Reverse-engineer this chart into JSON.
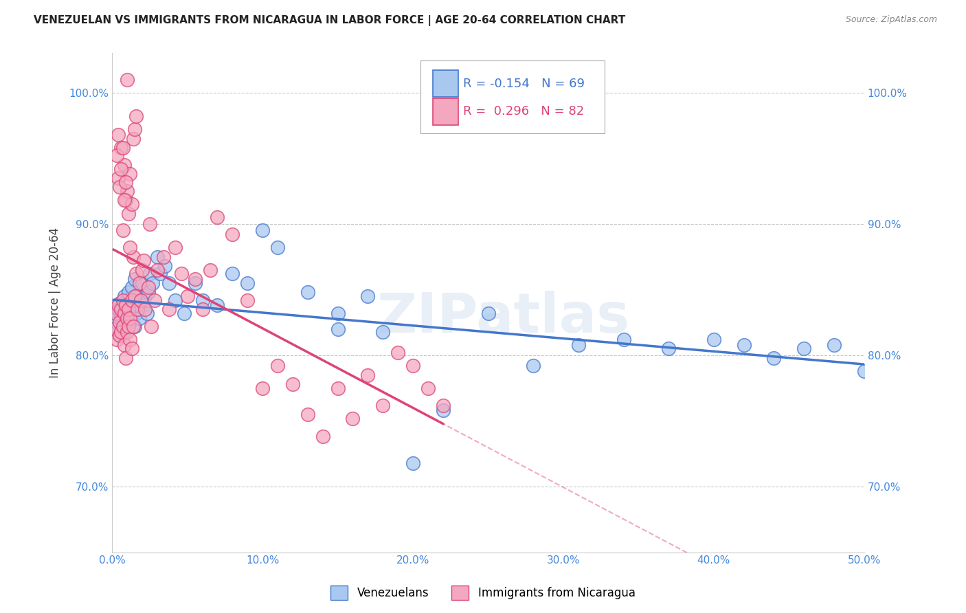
{
  "title": "VENEZUELAN VS IMMIGRANTS FROM NICARAGUA IN LABOR FORCE | AGE 20-64 CORRELATION CHART",
  "source": "Source: ZipAtlas.com",
  "ylabel": "In Labor Force | Age 20-64",
  "xmin": 0.0,
  "xmax": 0.5,
  "ymin": 0.65,
  "ymax": 1.03,
  "yticks": [
    0.7,
    0.8,
    0.9,
    1.0
  ],
  "ytick_labels": [
    "70.0%",
    "80.0%",
    "90.0%",
    "100.0%"
  ],
  "xticks": [
    0.0,
    0.1,
    0.2,
    0.3,
    0.4,
    0.5
  ],
  "xtick_labels": [
    "0.0%",
    "10.0%",
    "20.0%",
    "30.0%",
    "40.0%",
    "50.0%"
  ],
  "legend_label1": "Venezuelans",
  "legend_label2": "Immigrants from Nicaragua",
  "R1": "-0.154",
  "N1": "69",
  "R2": "0.296",
  "N2": "82",
  "color1": "#A8C8F0",
  "color2": "#F4A8C0",
  "line_color1": "#4477CC",
  "line_color2": "#DD4477",
  "watermark": "ZIPatlas",
  "background_color": "#FFFFFF",
  "title_color": "#222222",
  "axis_label_color": "#444444",
  "tick_color": "#4488DD",
  "grid_color": "#BBBBBB",
  "venezuelan_x": [
    0.001,
    0.002,
    0.003,
    0.004,
    0.005,
    0.005,
    0.006,
    0.006,
    0.007,
    0.007,
    0.008,
    0.008,
    0.009,
    0.009,
    0.01,
    0.01,
    0.011,
    0.011,
    0.012,
    0.012,
    0.013,
    0.013,
    0.014,
    0.014,
    0.015,
    0.015,
    0.016,
    0.016,
    0.017,
    0.018,
    0.019,
    0.02,
    0.021,
    0.022,
    0.023,
    0.024,
    0.025,
    0.027,
    0.03,
    0.032,
    0.035,
    0.038,
    0.042,
    0.048,
    0.055,
    0.06,
    0.07,
    0.08,
    0.09,
    0.1,
    0.11,
    0.13,
    0.15,
    0.17,
    0.2,
    0.22,
    0.25,
    0.28,
    0.31,
    0.34,
    0.37,
    0.4,
    0.42,
    0.44,
    0.46,
    0.48,
    0.5,
    0.15,
    0.18
  ],
  "venezuelan_y": [
    0.82,
    0.83,
    0.825,
    0.835,
    0.84,
    0.815,
    0.832,
    0.828,
    0.838,
    0.822,
    0.845,
    0.818,
    0.835,
    0.828,
    0.842,
    0.836,
    0.83,
    0.848,
    0.838,
    0.825,
    0.852,
    0.828,
    0.842,
    0.835,
    0.858,
    0.822,
    0.845,
    0.832,
    0.838,
    0.828,
    0.842,
    0.855,
    0.838,
    0.845,
    0.832,
    0.848,
    0.862,
    0.855,
    0.875,
    0.862,
    0.868,
    0.855,
    0.842,
    0.832,
    0.855,
    0.842,
    0.838,
    0.862,
    0.855,
    0.895,
    0.882,
    0.848,
    0.832,
    0.845,
    0.718,
    0.758,
    0.832,
    0.792,
    0.808,
    0.812,
    0.805,
    0.812,
    0.808,
    0.798,
    0.805,
    0.808,
    0.788,
    0.82,
    0.818
  ],
  "nicaragua_x": [
    0.001,
    0.002,
    0.003,
    0.004,
    0.005,
    0.005,
    0.006,
    0.006,
    0.007,
    0.007,
    0.008,
    0.008,
    0.009,
    0.009,
    0.01,
    0.01,
    0.011,
    0.011,
    0.012,
    0.012,
    0.013,
    0.013,
    0.014,
    0.014,
    0.015,
    0.016,
    0.017,
    0.018,
    0.019,
    0.02,
    0.021,
    0.022,
    0.024,
    0.026,
    0.028,
    0.03,
    0.034,
    0.038,
    0.042,
    0.046,
    0.05,
    0.055,
    0.06,
    0.065,
    0.07,
    0.08,
    0.09,
    0.1,
    0.11,
    0.12,
    0.13,
    0.14,
    0.15,
    0.16,
    0.17,
    0.18,
    0.19,
    0.2,
    0.21,
    0.22,
    0.025,
    0.004,
    0.006,
    0.007,
    0.008,
    0.009,
    0.01,
    0.011,
    0.012,
    0.013,
    0.014,
    0.015,
    0.016,
    0.003,
    0.004,
    0.005,
    0.006,
    0.007,
    0.008,
    0.009,
    0.01,
    0.012
  ],
  "nicaragua_y": [
    0.82,
    0.832,
    0.812,
    0.838,
    0.825,
    0.815,
    0.835,
    0.818,
    0.842,
    0.822,
    0.832,
    0.808,
    0.838,
    0.798,
    0.828,
    0.818,
    0.835,
    0.822,
    0.828,
    0.812,
    0.842,
    0.805,
    0.875,
    0.822,
    0.845,
    0.862,
    0.835,
    0.855,
    0.842,
    0.865,
    0.872,
    0.835,
    0.852,
    0.822,
    0.842,
    0.865,
    0.875,
    0.835,
    0.882,
    0.862,
    0.845,
    0.858,
    0.835,
    0.865,
    0.905,
    0.892,
    0.842,
    0.775,
    0.792,
    0.778,
    0.755,
    0.738,
    0.775,
    0.752,
    0.785,
    0.762,
    0.802,
    0.792,
    0.775,
    0.762,
    0.9,
    0.935,
    0.958,
    0.895,
    0.945,
    0.918,
    0.925,
    0.908,
    0.938,
    0.915,
    0.965,
    0.972,
    0.982,
    0.952,
    0.968,
    0.928,
    0.942,
    0.958,
    0.918,
    0.932,
    1.01,
    0.882
  ]
}
